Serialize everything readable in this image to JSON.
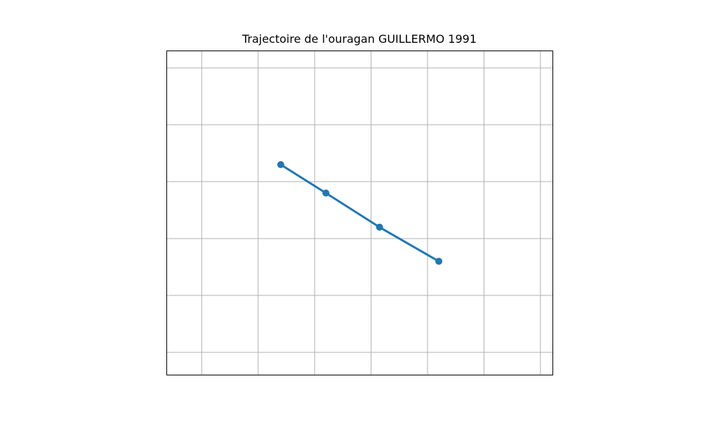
{
  "chart_data": {
    "type": "line",
    "title": "Trajectoire de l'ouragan GUILLERMO 1991",
    "xlabel": "",
    "ylabel": "",
    "xlim": [
      -128.62,
      -121.78
    ],
    "ylim": [
      6.6,
      12.3
    ],
    "grid": true,
    "x_gridlines": [
      -128.0,
      -127.0,
      -126.0,
      -125.0,
      -124.0,
      -123.0,
      -122.0
    ],
    "y_gridlines": [
      7.0,
      8.0,
      9.0,
      10.0,
      11.0,
      12.0
    ],
    "series": [
      {
        "color": "#1f77b4",
        "marker": "circle",
        "x": [
          -126.6,
          -125.8,
          -124.85,
          -123.8
        ],
        "y": [
          10.3,
          9.8,
          9.2,
          8.6
        ]
      }
    ]
  }
}
